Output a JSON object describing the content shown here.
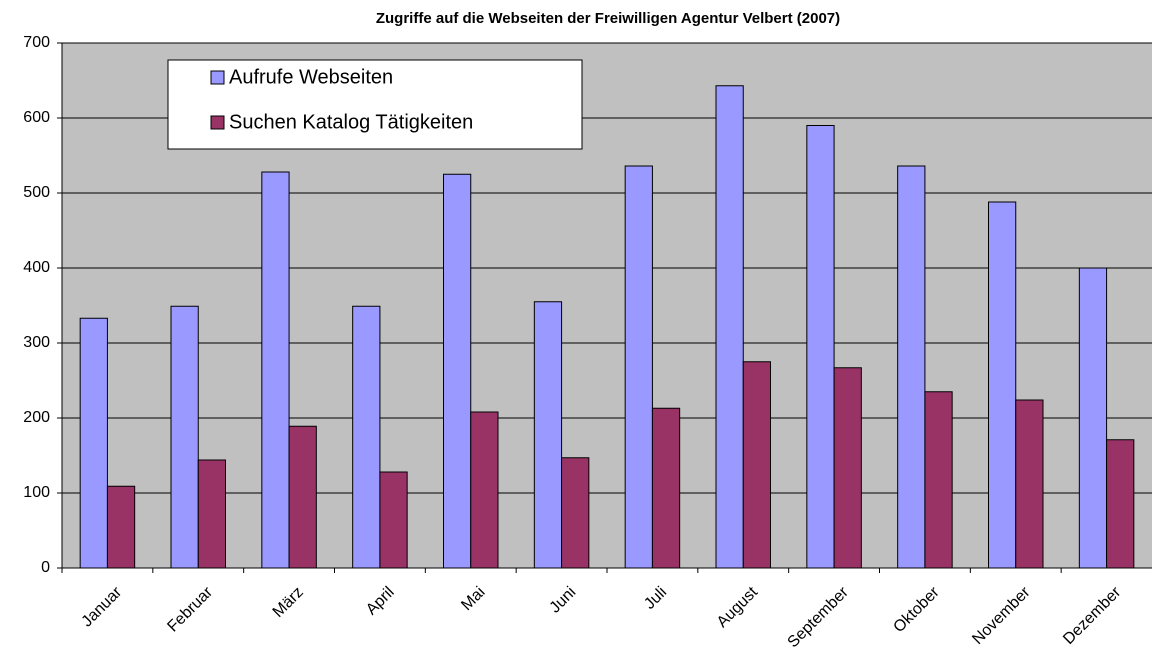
{
  "chart_data": {
    "type": "bar",
    "title": "Zugriffe auf die Webseiten der Freiwilligen Agentur Velbert (2007)",
    "categories": [
      "Januar",
      "Februar",
      "März",
      "April",
      "Mai",
      "Juni",
      "Juli",
      "August",
      "September",
      "Oktober",
      "November",
      "Dezember"
    ],
    "series": [
      {
        "name": "Aufrufe Webseiten",
        "color": "#9999ff",
        "values": [
          333,
          349,
          528,
          349,
          525,
          355,
          536,
          643,
          590,
          536,
          488,
          400
        ]
      },
      {
        "name": "Suchen Katalog Tätigkeiten",
        "color": "#993366",
        "values": [
          109,
          144,
          189,
          128,
          208,
          147,
          213,
          275,
          267,
          235,
          224,
          171
        ]
      }
    ],
    "ylim": [
      0,
      700
    ],
    "yticks": [
      0,
      100,
      200,
      300,
      400,
      500,
      600,
      700
    ],
    "grid": true,
    "legend": "top-left"
  }
}
